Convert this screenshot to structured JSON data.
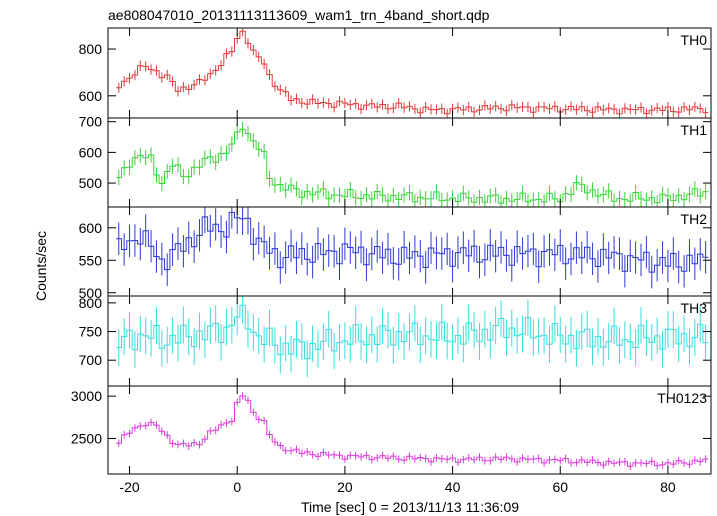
{
  "title": "ae808047010_20131113113609_wam1_trn_4band_short.qdp",
  "ylabel": "Counts/sec",
  "xlabel": "Time [sec] 0 = 2013/11/13 11:36:09",
  "chart_data": {
    "type": "line",
    "title": "ae808047010_20131113113609_wam1_trn_4band_short.qdp",
    "xlabel": "Time [sec] 0 = 2013/11/13 11:36:09",
    "ylabel": "Counts/sec",
    "xlim": [
      -24,
      88
    ],
    "x_ticks": [
      -20,
      0,
      20,
      40,
      60,
      80
    ],
    "bin_width": 1,
    "x_start": -22,
    "x_end": 87,
    "panels": [
      {
        "name": "TH0",
        "color": "#e03a3a",
        "ylim": [
          505,
          890
        ],
        "yticks": [
          600,
          800
        ],
        "err": 22,
        "keys": [
          [
            -22,
            640
          ],
          [
            -19,
            700
          ],
          [
            -17,
            725
          ],
          [
            -15,
            705
          ],
          [
            -13,
            680
          ],
          [
            -11,
            625
          ],
          [
            -9,
            640
          ],
          [
            -7,
            655
          ],
          [
            -5,
            690
          ],
          [
            -3,
            740
          ],
          [
            -1,
            790
          ],
          [
            0,
            845
          ],
          [
            1,
            875
          ],
          [
            2,
            840
          ],
          [
            3,
            785
          ],
          [
            4,
            760
          ],
          [
            5,
            740
          ],
          [
            6,
            685
          ],
          [
            8,
            625
          ],
          [
            10,
            585
          ],
          [
            14,
            570
          ],
          [
            20,
            565
          ],
          [
            25,
            555
          ],
          [
            30,
            555
          ],
          [
            35,
            540
          ],
          [
            40,
            540
          ],
          [
            50,
            550
          ],
          [
            60,
            545
          ],
          [
            70,
            540
          ],
          [
            80,
            540
          ],
          [
            87,
            545
          ]
        ]
      },
      {
        "name": "TH1",
        "color": "#3ad23a",
        "ylim": [
          422,
          712
        ],
        "yticks": [
          500,
          600,
          700
        ],
        "err": 25,
        "keys": [
          [
            -22,
            510
          ],
          [
            -20,
            570
          ],
          [
            -18,
            590
          ],
          [
            -16,
            575
          ],
          [
            -14,
            505
          ],
          [
            -12,
            560
          ],
          [
            -10,
            525
          ],
          [
            -8,
            545
          ],
          [
            -6,
            570
          ],
          [
            -4,
            585
          ],
          [
            -2,
            600
          ],
          [
            0,
            650
          ],
          [
            1,
            690
          ],
          [
            2,
            665
          ],
          [
            3,
            635
          ],
          [
            4,
            615
          ],
          [
            5,
            585
          ],
          [
            6,
            520
          ],
          [
            8,
            490
          ],
          [
            12,
            470
          ],
          [
            20,
            460
          ],
          [
            30,
            455
          ],
          [
            40,
            450
          ],
          [
            50,
            448
          ],
          [
            60,
            448
          ],
          [
            63,
            490
          ],
          [
            65,
            480
          ],
          [
            70,
            450
          ],
          [
            80,
            450
          ],
          [
            87,
            470
          ]
        ]
      },
      {
        "name": "TH2",
        "color": "#2d3ad2",
        "ylim": [
          495,
          632
        ],
        "yticks": [
          500,
          550,
          600
        ],
        "err": 25,
        "keys": [
          [
            -22,
            565
          ],
          [
            -18,
            590
          ],
          [
            -14,
            548
          ],
          [
            -10,
            570
          ],
          [
            -6,
            600
          ],
          [
            -2,
            600
          ],
          [
            0,
            615
          ],
          [
            2,
            612
          ],
          [
            4,
            575
          ],
          [
            8,
            555
          ],
          [
            12,
            560
          ],
          [
            16,
            560
          ],
          [
            20,
            565
          ],
          [
            30,
            555
          ],
          [
            40,
            560
          ],
          [
            50,
            560
          ],
          [
            60,
            560
          ],
          [
            70,
            555
          ],
          [
            80,
            545
          ],
          [
            87,
            550
          ]
        ]
      },
      {
        "name": "TH3",
        "color": "#3adcdc",
        "ylim": [
          655,
          812
        ],
        "yticks": [
          700,
          750,
          800
        ],
        "err": 32,
        "keys": [
          [
            -22,
            728
          ],
          [
            -18,
            745
          ],
          [
            -14,
            735
          ],
          [
            -10,
            740
          ],
          [
            -6,
            745
          ],
          [
            -2,
            755
          ],
          [
            0,
            775
          ],
          [
            2,
            770
          ],
          [
            4,
            740
          ],
          [
            8,
            725
          ],
          [
            12,
            720
          ],
          [
            16,
            730
          ],
          [
            20,
            735
          ],
          [
            30,
            745
          ],
          [
            40,
            740
          ],
          [
            50,
            755
          ],
          [
            60,
            740
          ],
          [
            70,
            735
          ],
          [
            80,
            740
          ],
          [
            87,
            740
          ]
        ]
      },
      {
        "name": "TH0123",
        "color": "#dc3adc",
        "ylim": [
          2080,
          3120
        ],
        "yticks": [
          2500,
          3000
        ],
        "err": 45,
        "keys": [
          [
            -22,
            2460
          ],
          [
            -19,
            2620
          ],
          [
            -17,
            2680
          ],
          [
            -15,
            2650
          ],
          [
            -13,
            2530
          ],
          [
            -11,
            2420
          ],
          [
            -9,
            2420
          ],
          [
            -7,
            2450
          ],
          [
            -5,
            2560
          ],
          [
            -3,
            2650
          ],
          [
            -1,
            2730
          ],
          [
            0,
            2900
          ],
          [
            1,
            3000
          ],
          [
            2,
            2950
          ],
          [
            3,
            2800
          ],
          [
            4,
            2760
          ],
          [
            5,
            2700
          ],
          [
            6,
            2530
          ],
          [
            8,
            2400
          ],
          [
            12,
            2330
          ],
          [
            20,
            2290
          ],
          [
            30,
            2270
          ],
          [
            40,
            2250
          ],
          [
            50,
            2260
          ],
          [
            60,
            2240
          ],
          [
            70,
            2210
          ],
          [
            80,
            2200
          ],
          [
            87,
            2240
          ]
        ]
      }
    ]
  }
}
